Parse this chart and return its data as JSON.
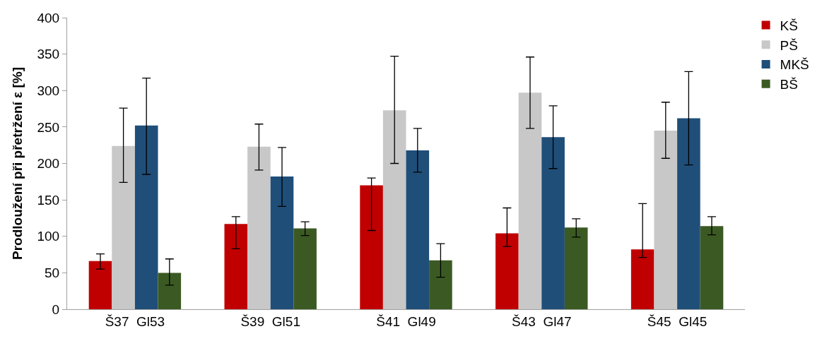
{
  "chart_data": {
    "type": "bar",
    "ylabel": "Prodloužení při přetržení ε [%]",
    "categories": [
      "Š37  Gl53",
      "Š39  Gl51",
      "Š41  Gl49",
      "Š43  Gl47",
      "Š45  Gl45"
    ],
    "series": [
      {
        "name": "KŠ",
        "color": "#c00000",
        "values": [
          66,
          117,
          170,
          104,
          82
        ],
        "errors": [
          [
            55,
            76
          ],
          [
            83,
            127
          ],
          [
            108,
            180
          ],
          [
            86,
            139
          ],
          [
            71,
            145
          ]
        ]
      },
      {
        "name": "PŠ",
        "color": "#c8c8c8",
        "values": [
          224,
          223,
          273,
          297,
          245
        ],
        "errors": [
          [
            174,
            276
          ],
          [
            191,
            254
          ],
          [
            200,
            347
          ],
          [
            248,
            346
          ],
          [
            207,
            284
          ]
        ]
      },
      {
        "name": "MKŠ",
        "color": "#1f4e79",
        "values": [
          252,
          182,
          218,
          236,
          262
        ],
        "errors": [
          [
            185,
            317
          ],
          [
            141,
            222
          ],
          [
            188,
            248
          ],
          [
            193,
            279
          ],
          [
            198,
            326
          ]
        ]
      },
      {
        "name": "BŠ",
        "color": "#3b5a23",
        "values": [
          50,
          111,
          67,
          112,
          114
        ],
        "errors": [
          [
            33,
            69
          ],
          [
            101,
            120
          ],
          [
            44,
            90
          ],
          [
            99,
            124
          ],
          [
            102,
            127
          ]
        ]
      }
    ],
    "ylim": [
      0,
      400
    ],
    "yticks": [
      0,
      50,
      100,
      150,
      200,
      250,
      300,
      350,
      400
    ],
    "grid": false,
    "legend": "top right"
  }
}
